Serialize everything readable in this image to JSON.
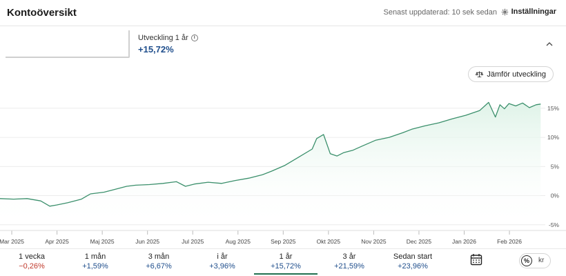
{
  "header": {
    "title": "Kontoöversikt",
    "updated": "Senast uppdaterad: 10 sek sedan",
    "settings_label": "Inställningar"
  },
  "performance": {
    "label": "Utveckling 1 år",
    "value": "+15,72%"
  },
  "compare_button": "Jämför utveckling",
  "colors": {
    "line": "#3a8f6b",
    "area": "#e9f6ef",
    "positive": "#1f4e8c",
    "negative": "#c0392b",
    "active_tab": "#1f6e4e"
  },
  "chart_data": {
    "type": "area",
    "x_labels": [
      "Mar 2025",
      "Apr 2025",
      "Maj 2025",
      "Jun 2025",
      "Jul 2025",
      "Aug 2025",
      "Sep 2025",
      "Okt 2025",
      "Nov 2025",
      "Dec 2025",
      "Jan 2026",
      "Feb 2026"
    ],
    "y_tick_labels": [
      "-5%",
      "0%",
      "5%",
      "10%",
      "15%"
    ],
    "y_ticks": [
      -5,
      0,
      5,
      10,
      15
    ],
    "ylim": [
      -5.5,
      17
    ],
    "grid": "horizontal",
    "series": [
      {
        "x": [
          0,
          0.3,
          0.6,
          0.9,
          1.1,
          1.25,
          1.5,
          1.8,
          2.0,
          2.3,
          2.5,
          2.8,
          3.0,
          3.3,
          3.6,
          3.9,
          4.1,
          4.3,
          4.6,
          4.9,
          5.2,
          5.5,
          5.8,
          6.0,
          6.3,
          6.6,
          6.9,
          7.0,
          7.15,
          7.3,
          7.45,
          7.6,
          7.8,
          8.0,
          8.3,
          8.6,
          8.9,
          9.1,
          9.4,
          9.7,
          10.0,
          10.3,
          10.6,
          10.8,
          10.95,
          11.05,
          11.15,
          11.25,
          11.4,
          11.55,
          11.7,
          11.85,
          11.95
        ],
        "values": [
          -0.5,
          -0.6,
          -0.5,
          -0.9,
          -1.8,
          -1.6,
          -1.2,
          -0.6,
          0.3,
          0.6,
          1.0,
          1.6,
          1.8,
          1.9,
          2.1,
          2.4,
          1.6,
          2.0,
          2.3,
          2.1,
          2.6,
          3.0,
          3.6,
          4.2,
          5.2,
          6.6,
          8.0,
          9.8,
          10.5,
          7.2,
          6.8,
          7.4,
          7.8,
          8.5,
          9.5,
          10.0,
          10.8,
          11.4,
          12.0,
          12.5,
          13.2,
          13.8,
          14.6,
          16.0,
          13.5,
          15.6,
          14.9,
          15.8,
          15.4,
          15.9,
          15.1,
          15.6,
          15.72
        ]
      }
    ]
  },
  "tabs": [
    {
      "label": "1 vecka",
      "value": "−0,26%",
      "sign": "neg"
    },
    {
      "label": "1 mån",
      "value": "+1,59%",
      "sign": "pos"
    },
    {
      "label": "3 mån",
      "value": "+6,67%",
      "sign": "pos"
    },
    {
      "label": "i år",
      "value": "+3,96%",
      "sign": "pos"
    },
    {
      "label": "1 år",
      "value": "+15,72%",
      "sign": "pos",
      "active": true
    },
    {
      "label": "3 år",
      "value": "+21,59%",
      "sign": "pos"
    },
    {
      "label": "Sedan start",
      "value": "+23,96%",
      "sign": "pos"
    }
  ],
  "toggle": {
    "percent": "%",
    "currency": "kr"
  }
}
